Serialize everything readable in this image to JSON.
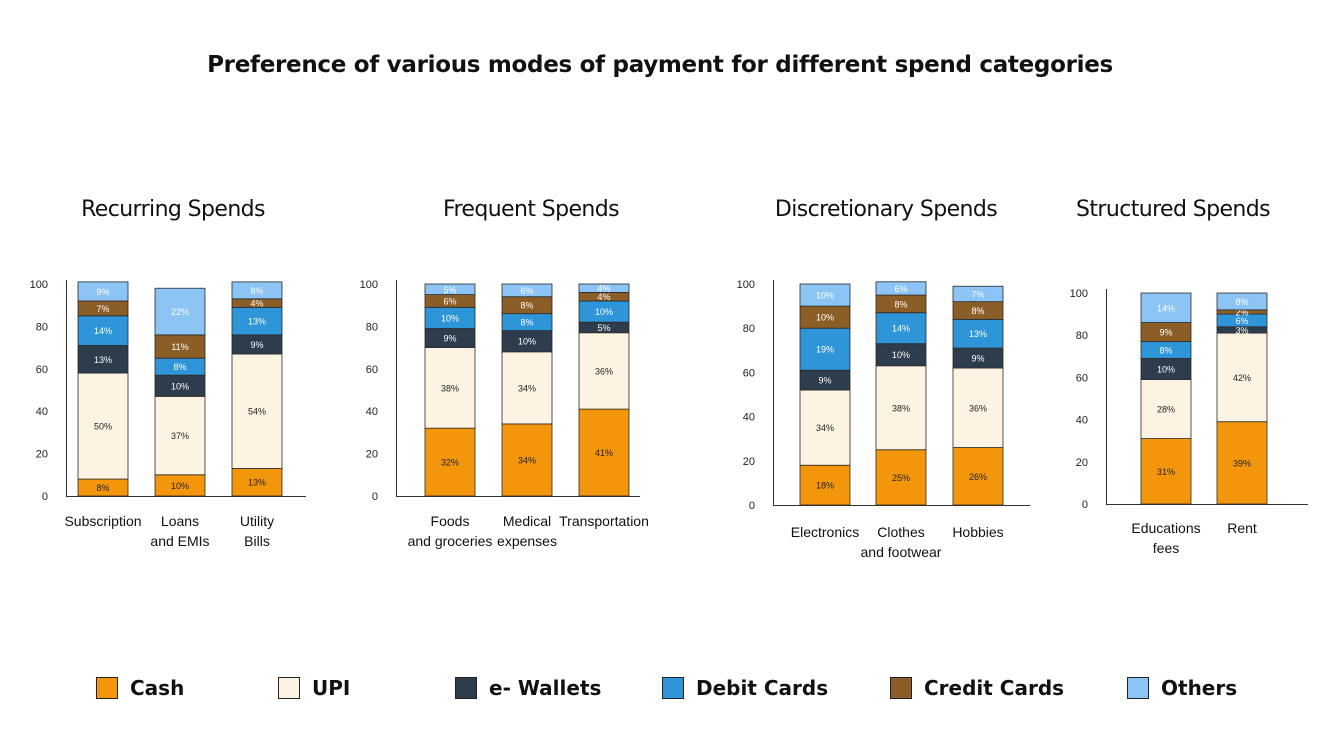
{
  "title": "Preference of various modes of payment for different spend categories",
  "chart_data": [
    {
      "type": "bar",
      "stacked": true,
      "title": "Recurring Spends",
      "categories": [
        [
          "Subscription"
        ],
        [
          "Loans",
          "and EMIs"
        ],
        [
          "Utility",
          "Bills"
        ]
      ],
      "ylim": [
        0,
        100
      ],
      "yticks": [
        0,
        20,
        40,
        60,
        80,
        100
      ],
      "series": [
        {
          "name": "Cash",
          "values": [
            8,
            10,
            13
          ]
        },
        {
          "name": "UPI",
          "values": [
            50,
            37,
            54
          ]
        },
        {
          "name": "e- Wallets",
          "values": [
            13,
            10,
            9
          ]
        },
        {
          "name": "Debit Cards",
          "values": [
            14,
            8,
            13
          ]
        },
        {
          "name": "Credit Cards",
          "values": [
            7,
            11,
            4
          ]
        },
        {
          "name": "Others",
          "values": [
            9,
            22,
            8
          ]
        }
      ]
    },
    {
      "type": "bar",
      "stacked": true,
      "title": "Frequent Spends",
      "categories": [
        [
          "Foods",
          "and groceries"
        ],
        [
          "Medical",
          "expenses"
        ],
        [
          "Transportation"
        ]
      ],
      "ylim": [
        0,
        100
      ],
      "yticks": [
        0,
        20,
        40,
        60,
        80,
        100
      ],
      "series": [
        {
          "name": "Cash",
          "values": [
            32,
            34,
            41
          ]
        },
        {
          "name": "UPI",
          "values": [
            38,
            34,
            36
          ]
        },
        {
          "name": "e- Wallets",
          "values": [
            9,
            10,
            5
          ]
        },
        {
          "name": "Debit Cards",
          "values": [
            10,
            8,
            10
          ]
        },
        {
          "name": "Credit Cards",
          "values": [
            6,
            8,
            4
          ]
        },
        {
          "name": "Others",
          "values": [
            5,
            6,
            4
          ]
        }
      ]
    },
    {
      "type": "bar",
      "stacked": true,
      "title": "Discretionary Spends",
      "categories": [
        [
          "Electronics"
        ],
        [
          "Clothes",
          "and footwear"
        ],
        [
          "Hobbies"
        ]
      ],
      "ylim": [
        0,
        100
      ],
      "yticks": [
        0,
        20,
        40,
        60,
        80,
        100
      ],
      "series": [
        {
          "name": "Cash",
          "values": [
            18,
            25,
            26
          ]
        },
        {
          "name": "UPI",
          "values": [
            34,
            38,
            36
          ]
        },
        {
          "name": "e- Wallets",
          "values": [
            9,
            10,
            9
          ]
        },
        {
          "name": "Debit Cards",
          "values": [
            19,
            14,
            13
          ]
        },
        {
          "name": "Credit Cards",
          "values": [
            10,
            8,
            8
          ]
        },
        {
          "name": "Others",
          "values": [
            10,
            6,
            7
          ]
        }
      ]
    },
    {
      "type": "bar",
      "stacked": true,
      "title": "Structured Spends",
      "categories": [
        [
          "Educations",
          "fees"
        ],
        [
          "Rent"
        ]
      ],
      "ylim": [
        0,
        100
      ],
      "yticks": [
        0,
        20,
        40,
        60,
        80,
        100
      ],
      "series": [
        {
          "name": "Cash",
          "values": [
            31,
            39
          ]
        },
        {
          "name": "UPI",
          "values": [
            28,
            42
          ]
        },
        {
          "name": "e- Wallets",
          "values": [
            10,
            3
          ]
        },
        {
          "name": "Debit Cards",
          "values": [
            8,
            6
          ]
        },
        {
          "name": "Credit Cards",
          "values": [
            9,
            2
          ]
        },
        {
          "name": "Others",
          "values": [
            14,
            8
          ]
        }
      ]
    }
  ],
  "legend": [
    {
      "name": "Cash",
      "color": "#F4960B"
    },
    {
      "name": "UPI",
      "color": "#FDF3E2"
    },
    {
      "name": "e- Wallets",
      "color": "#2E3D4D"
    },
    {
      "name": "Debit Cards",
      "color": "#2E95D8"
    },
    {
      "name": "Credit Cards",
      "color": "#8C5E27"
    },
    {
      "name": "Others",
      "color": "#8CC4F5"
    }
  ]
}
